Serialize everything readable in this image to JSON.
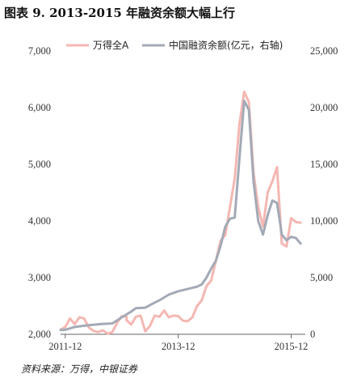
{
  "chart_data": {
    "type": "line",
    "title": "图表 9. 2013-2015 年融资余额大幅上行",
    "source": "资料来源：万得，中银证券",
    "x_tick_labels": [
      "2011-12",
      "2013-12",
      "2015-12"
    ],
    "x_tick_dates": [
      "2011-12",
      "2013-12",
      "2015-12"
    ],
    "x_range": [
      "2011-11",
      "2016-03"
    ],
    "y_left": {
      "lim": [
        2000,
        7000
      ],
      "ticks": [
        2000,
        3000,
        4000,
        5000,
        6000,
        7000
      ],
      "tick_labels": [
        "2,000",
        "3,000",
        "4,000",
        "5,000",
        "6,000",
        "7,000"
      ]
    },
    "y_right": {
      "lim": [
        0,
        25000
      ],
      "ticks": [
        0,
        5000,
        10000,
        15000,
        20000,
        25000
      ],
      "tick_labels": [
        "0",
        "5,000",
        "10,000",
        "15,000",
        "20,000",
        "25,000"
      ]
    },
    "legend_position": "top",
    "grid": false,
    "series": [
      {
        "name": "万得全A",
        "axis": "left",
        "color": "#f4b7b2",
        "points": [
          [
            "2011-11",
            2080
          ],
          [
            "2011-12",
            2130
          ],
          [
            "2012-01",
            2280
          ],
          [
            "2012-02",
            2180
          ],
          [
            "2012-03",
            2300
          ],
          [
            "2012-04",
            2280
          ],
          [
            "2012-05",
            2120
          ],
          [
            "2012-06",
            2060
          ],
          [
            "2012-07",
            2040
          ],
          [
            "2012-08",
            2070
          ],
          [
            "2012-09",
            2010
          ],
          [
            "2012-10",
            2040
          ],
          [
            "2012-11",
            2200
          ],
          [
            "2012-12",
            2320
          ],
          [
            "2012-13",
            2310
          ],
          [
            "2013-01",
            2250
          ],
          [
            "2013-02",
            2170
          ],
          [
            "2013-03",
            2310
          ],
          [
            "2013-04",
            2330
          ],
          [
            "2013-05",
            2050
          ],
          [
            "2013-06",
            2150
          ],
          [
            "2013-07",
            2330
          ],
          [
            "2013-08",
            2310
          ],
          [
            "2013-09",
            2420
          ],
          [
            "2013-10",
            2300
          ],
          [
            "2013-11",
            2330
          ],
          [
            "2013-12",
            2320
          ],
          [
            "2014-01",
            2240
          ],
          [
            "2014-02",
            2230
          ],
          [
            "2014-03",
            2300
          ],
          [
            "2014-04",
            2500
          ],
          [
            "2014-05",
            2600
          ],
          [
            "2014-06",
            2850
          ],
          [
            "2014-07",
            2950
          ],
          [
            "2014-08",
            3300
          ],
          [
            "2014-09",
            3650
          ],
          [
            "2014-10",
            3750
          ],
          [
            "2014-11",
            4250
          ],
          [
            "2014-12",
            4750
          ],
          [
            "2015-01",
            5700
          ],
          [
            "2015-02",
            6280
          ],
          [
            "2015-03",
            6100
          ],
          [
            "2015-04",
            4850
          ],
          [
            "2015-05",
            4250
          ],
          [
            "2015-06",
            3900
          ],
          [
            "2015-07",
            4500
          ],
          [
            "2015-08",
            4700
          ],
          [
            "2015-09",
            4950
          ],
          [
            "2015-10",
            3600
          ],
          [
            "2015-11",
            3550
          ],
          [
            "2015-12",
            4050
          ],
          [
            "2016-01",
            3980
          ],
          [
            "2016-02",
            3970
          ]
        ]
      },
      {
        "name": "中国融资余额(亿元，右轴)",
        "axis": "right",
        "color": "#a3aab6",
        "points": [
          [
            "2011-11",
            380
          ],
          [
            "2011-12",
            400
          ],
          [
            "2012-02",
            650
          ],
          [
            "2012-05",
            800
          ],
          [
            "2012-08",
            920
          ],
          [
            "2012-10",
            960
          ],
          [
            "2012-12",
            1500
          ],
          [
            "2013-02",
            2000
          ],
          [
            "2013-03",
            2300
          ],
          [
            "2013-05",
            2350
          ],
          [
            "2013-07",
            2800
          ],
          [
            "2013-08",
            3000
          ],
          [
            "2013-10",
            3500
          ],
          [
            "2013-12",
            3800
          ],
          [
            "2014-01",
            3900
          ],
          [
            "2014-03",
            4100
          ],
          [
            "2014-04",
            4200
          ],
          [
            "2014-05",
            4400
          ],
          [
            "2014-06",
            5000
          ],
          [
            "2014-07",
            5800
          ],
          [
            "2014-08",
            6500
          ],
          [
            "2014-09",
            7800
          ],
          [
            "2014-10",
            9500
          ],
          [
            "2014-11",
            10200
          ],
          [
            "2014-12",
            10300
          ],
          [
            "2015-01",
            15500
          ],
          [
            "2015-02",
            20600
          ],
          [
            "2015-03",
            19800
          ],
          [
            "2015-04",
            13500
          ],
          [
            "2015-05",
            10000
          ],
          [
            "2015-06",
            8800
          ],
          [
            "2015-07",
            10500
          ],
          [
            "2015-08",
            11800
          ],
          [
            "2015-09",
            11600
          ],
          [
            "2015-10",
            8800
          ],
          [
            "2015-11",
            8300
          ],
          [
            "2015-12",
            8600
          ],
          [
            "2016-01",
            8500
          ],
          [
            "2016-02",
            8000
          ]
        ]
      }
    ]
  }
}
